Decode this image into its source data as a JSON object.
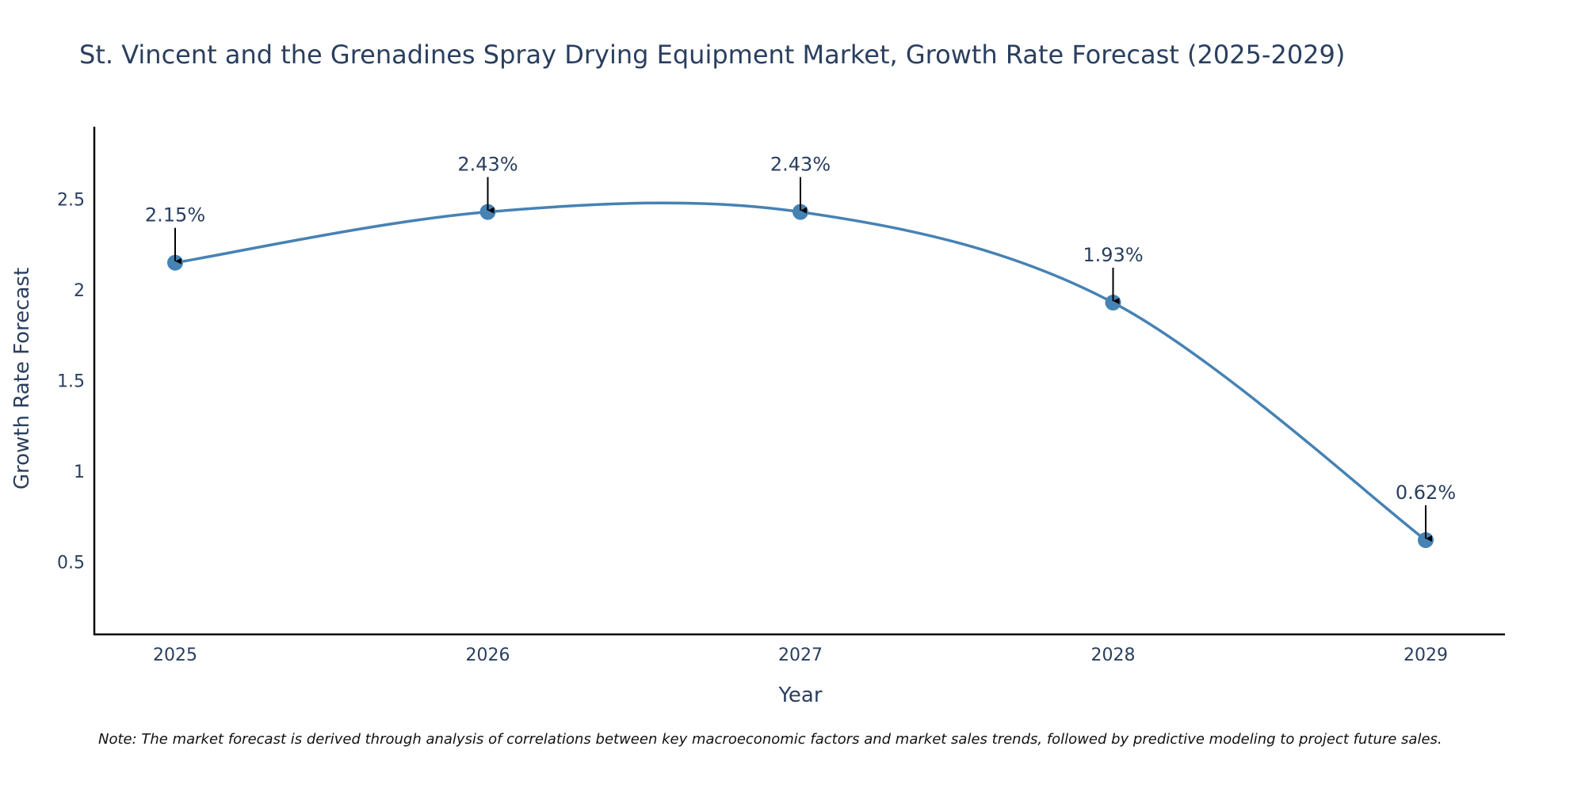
{
  "chart_data": {
    "type": "line",
    "title": "St. Vincent and the Grenadines Spray Drying Equipment Market, Growth Rate Forecast (2025-2029)",
    "xlabel": "Year",
    "ylabel": "Growth Rate Forecast",
    "categories": [
      "2025",
      "2026",
      "2027",
      "2028",
      "2029"
    ],
    "series": [
      {
        "name": "Growth Rate Forecast",
        "values": [
          2.15,
          2.43,
          2.43,
          1.93,
          0.62
        ],
        "labels": [
          "2.15%",
          "2.43%",
          "2.43%",
          "1.93%",
          "0.62%"
        ],
        "color": "#4682b4"
      }
    ],
    "yticks": [
      "0.5",
      "1",
      "1.5",
      "2",
      "2.5"
    ],
    "ylim": [
      0.1,
      2.9
    ],
    "grid": false,
    "line_shape": "spline"
  },
  "note": "Note: The market forecast is derived through analysis of correlations between key macroeconomic factors and market sales trends, followed by predictive modeling to project future sales.",
  "colors": {
    "text": "#2a3f5f",
    "axis": "#000000",
    "annotation_arrow": "#000000"
  }
}
